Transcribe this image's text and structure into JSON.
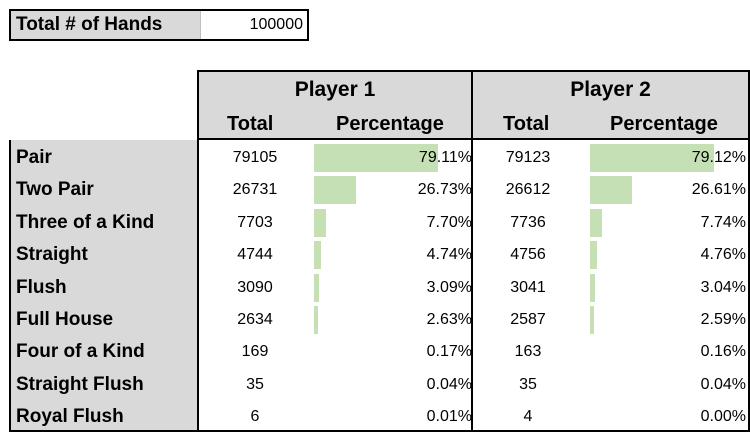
{
  "summary": {
    "label": "Total # of Hands",
    "value": "100000"
  },
  "players": [
    {
      "name": "Player 1",
      "total_header": "Total",
      "pct_header": "Percentage"
    },
    {
      "name": "Player 2",
      "total_header": "Total",
      "pct_header": "Percentage"
    }
  ],
  "rows": [
    {
      "label": "Pair",
      "p1_total": "79105",
      "p1_pct": "79.11%",
      "p1_frac": 0.7911,
      "p2_total": "79123",
      "p2_pct": "79.12%",
      "p2_frac": 0.7912
    },
    {
      "label": "Two Pair",
      "p1_total": "26731",
      "p1_pct": "26.73%",
      "p1_frac": 0.2673,
      "p2_total": "26612",
      "p2_pct": "26.61%",
      "p2_frac": 0.2661
    },
    {
      "label": "Three of a Kind",
      "p1_total": "7703",
      "p1_pct": "7.70%",
      "p1_frac": 0.077,
      "p2_total": "7736",
      "p2_pct": "7.74%",
      "p2_frac": 0.0774
    },
    {
      "label": "Straight",
      "p1_total": "4744",
      "p1_pct": "4.74%",
      "p1_frac": 0.0474,
      "p2_total": "4756",
      "p2_pct": "4.76%",
      "p2_frac": 0.0476
    },
    {
      "label": "Flush",
      "p1_total": "3090",
      "p1_pct": "3.09%",
      "p1_frac": 0.0309,
      "p2_total": "3041",
      "p2_pct": "3.04%",
      "p2_frac": 0.0304
    },
    {
      "label": "Full House",
      "p1_total": "2634",
      "p1_pct": "2.63%",
      "p1_frac": 0.0263,
      "p2_total": "2587",
      "p2_pct": "2.59%",
      "p2_frac": 0.0259
    },
    {
      "label": "Four of a Kind",
      "p1_total": "169",
      "p1_pct": "0.17%",
      "p1_frac": 0.0017,
      "p2_total": "163",
      "p2_pct": "0.16%",
      "p2_frac": 0.0016
    },
    {
      "label": "Straight Flush",
      "p1_total": "35",
      "p1_pct": "0.04%",
      "p1_frac": 0.0004,
      "p2_total": "35",
      "p2_pct": "0.04%",
      "p2_frac": 0.0004
    },
    {
      "label": "Royal Flush",
      "p1_total": "6",
      "p1_pct": "0.01%",
      "p1_frac": 0.0001,
      "p2_total": "4",
      "p2_pct": "0.00%",
      "p2_frac": 0.0
    }
  ],
  "colors": {
    "header_fill": "#d9d9d9",
    "databar_fill": "#c5e0b4",
    "border": "#000000"
  }
}
